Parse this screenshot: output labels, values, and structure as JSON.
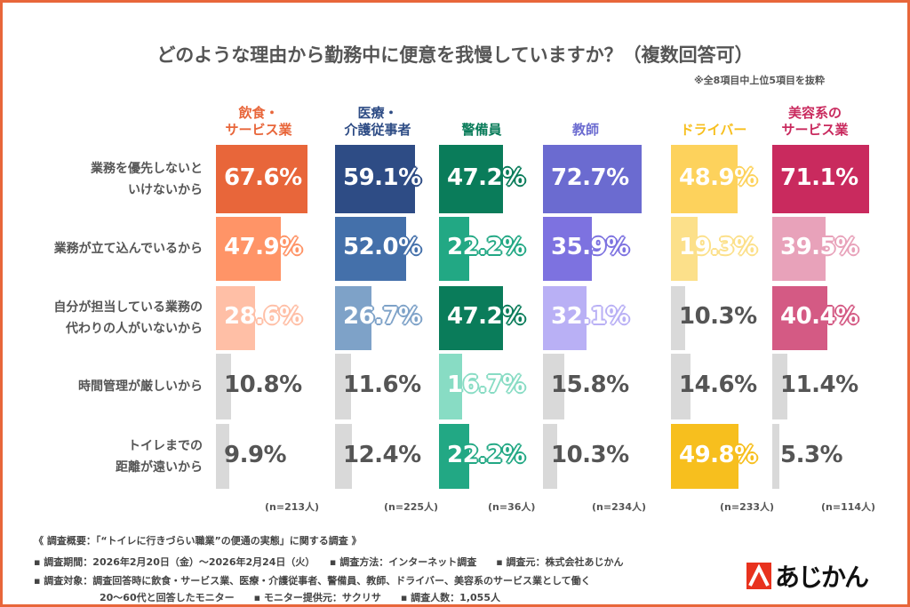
{
  "chart_data": {
    "type": "bar",
    "title": "どのような理由から勤務中に便意を我慢していますか？（複数回答可）",
    "subtitle": "※全8項目中上位5項目を抜粋",
    "categories": [
      "業務を優先しないと\nいけないから",
      "業務が立て込んでいるから",
      "自分が担当している業務の\n代わりの人がいないから",
      "時間管理が厳しいから",
      "トイレまでの\n距離が遠いから"
    ],
    "xlim": [
      0,
      100
    ],
    "grid": false,
    "legend": "none",
    "series": [
      {
        "name": "飲食・\nサービス業",
        "n": "(n=213人)",
        "head_color": "#E8663A",
        "values": [
          67.6,
          47.9,
          28.6,
          10.8,
          9.9
        ],
        "colors": [
          "#E8663A",
          "#FF9467",
          "#FFBFA6",
          "#D9D9D9",
          "#D9D9D9"
        ]
      },
      {
        "name": "医療・\n介護従事者",
        "n": "(n=225人)",
        "head_color": "#2E4C85",
        "values": [
          59.1,
          52.0,
          26.7,
          11.6,
          12.4
        ],
        "colors": [
          "#2E4C85",
          "#4470AA",
          "#7EA2C8",
          "#D9D9D9",
          "#D9D9D9"
        ]
      },
      {
        "name": "警備員",
        "n": "(n=36人)",
        "head_color": "#0A7C5A",
        "values": [
          47.2,
          22.2,
          47.2,
          16.7,
          22.2
        ],
        "colors": [
          "#0A7C5A",
          "#22A884",
          "#0A7C5A",
          "#88DCC4",
          "#22A884"
        ]
      },
      {
        "name": "教師",
        "n": "(n=234人)",
        "head_color": "#6B6BD0",
        "values": [
          72.7,
          35.9,
          32.1,
          15.8,
          10.3
        ],
        "colors": [
          "#6B6BD0",
          "#7D72E0",
          "#B9B0F5",
          "#D9D9D9",
          "#D9D9D9"
        ]
      },
      {
        "name": "ドライバー",
        "n": "(n=233人)",
        "head_color": "#F7BF1E",
        "values": [
          48.9,
          19.3,
          10.3,
          14.6,
          49.8
        ],
        "colors": [
          "#FDD25C",
          "#FCE08A",
          "#D9D9D9",
          "#D9D9D9",
          "#F7BF1E"
        ]
      },
      {
        "name": "美容系の\nサービス業",
        "n": "(n=114人)",
        "head_color": "#C92A5E",
        "values": [
          71.1,
          39.5,
          40.4,
          11.4,
          5.3
        ],
        "colors": [
          "#C92A5E",
          "#E8A2BA",
          "#D45A84",
          "#D9D9D9",
          "#D9D9D9"
        ]
      }
    ]
  },
  "footer": {
    "heading": "《 調査概要：「“トイレに行きづらい職業”の便通の実態」に関する調査 》",
    "line1": "▪ 調査期間：2026年2月20日（金）～2026年2月24日（火）　　▪ 調査方法：インターネット調査　　▪ 調査元：株式会社あじかん",
    "line2": "▪ 調査対象：調査回答時に飲食・サービス業、医療・介護従事者、警備員、教師、ドライバー、美容系のサービス業として働く",
    "line3": "20～60代と回答したモニター　　▪ モニター提供元：サクリサ　　▪ 調査人数：1,055人"
  },
  "logo": {
    "text": "あじかん",
    "color": "#E8321E"
  }
}
